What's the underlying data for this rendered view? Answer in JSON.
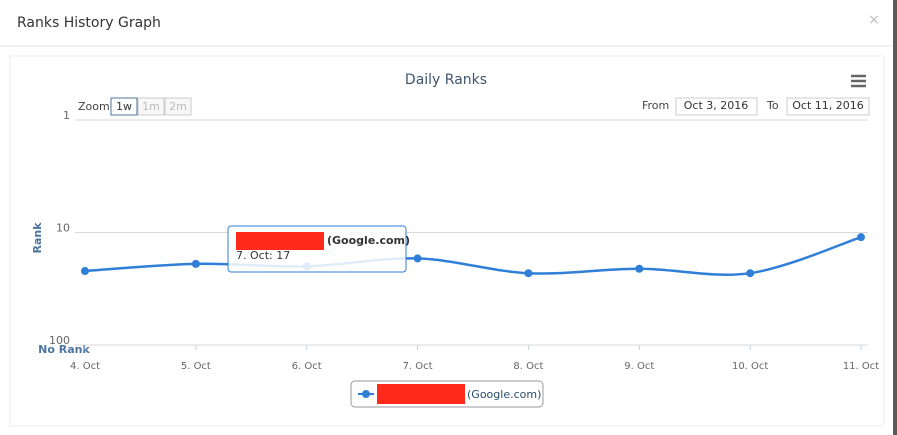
{
  "modal": {
    "title": "Ranks History Graph",
    "close": "×"
  },
  "controls": {
    "zoom_label": "Zoom",
    "zoom_buttons": [
      "1w",
      "1m",
      "2m"
    ],
    "from_label": "From",
    "from": "Oct 3, 2016",
    "to_label": "To",
    "to": "Oct 11, 2016"
  },
  "tooltip": {
    "series": "(Google.com)",
    "text": "7. Oct: 17"
  },
  "chart_data": {
    "type": "line",
    "title": "Daily Ranks",
    "y_label": "Rank",
    "y_bottom_label": "No Rank",
    "categories": [
      "4. Oct",
      "5. Oct",
      "6. Oct",
      "7. Oct",
      "8. Oct",
      "9. Oct",
      "10. Oct",
      "11. Oct"
    ],
    "series": [
      {
        "name": "(Google.com)",
        "color": "#2f7ed8",
        "values": [
          22,
          19,
          20,
          17,
          23,
          21,
          23,
          11
        ]
      }
    ],
    "ylim": [
      1,
      100
    ],
    "yticks": [
      1,
      10,
      100
    ],
    "log_scale": true,
    "reversed": true,
    "grid": true
  }
}
